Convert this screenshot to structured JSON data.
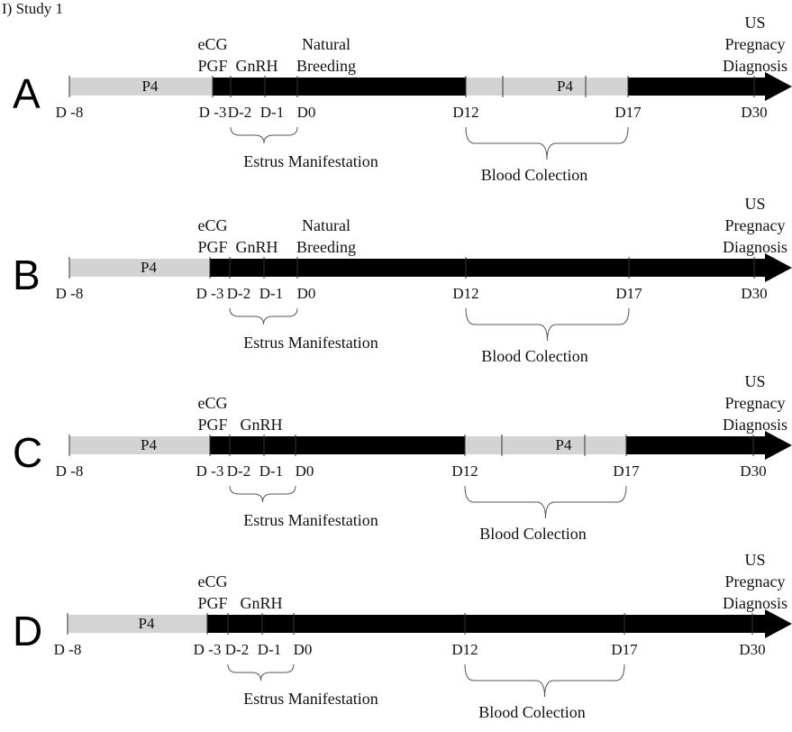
{
  "title": "I) Study 1",
  "panels": [
    {
      "letter": "A",
      "bars": [
        {
          "from": "D -8",
          "to": "D -3",
          "label": "P4",
          "color": "#d3d3d3"
        },
        {
          "from": "D12",
          "to": "D17",
          "label": "P4",
          "color": "#d3d3d3"
        }
      ],
      "days": [
        "D -8",
        "D -3",
        "D-2",
        "D-1",
        "D0",
        "D12",
        "D17",
        "D30"
      ],
      "top_labels": [
        {
          "lines": [
            "eCG",
            "PGF"
          ]
        },
        {
          "lines": [
            "GnRH"
          ]
        },
        {
          "lines": [
            "Natural",
            "Breeding"
          ]
        },
        {
          "lines": [
            "US",
            "Pregnacy",
            "Diagnosis"
          ]
        }
      ],
      "estrus_label": "Estrus Manifestation",
      "blood_label": "Blood Colection"
    },
    {
      "letter": "B",
      "bars": [
        {
          "from": "D -8",
          "to": "D -3",
          "label": "P4",
          "color": "#d3d3d3"
        }
      ],
      "days": [
        "D -8",
        "D -3",
        "D-2",
        "D-1",
        "D0",
        "D12",
        "D17",
        "D30"
      ],
      "top_labels": [
        {
          "lines": [
            "eCG",
            "PGF"
          ]
        },
        {
          "lines": [
            "GnRH"
          ]
        },
        {
          "lines": [
            "Natural",
            "Breeding"
          ]
        },
        {
          "lines": [
            "US",
            "Pregnacy",
            "Diagnosis"
          ]
        }
      ],
      "estrus_label": "Estrus Manifestation",
      "blood_label": "Blood Colection"
    },
    {
      "letter": "C",
      "bars": [
        {
          "from": "D -8",
          "to": "D -3",
          "label": "P4",
          "color": "#d3d3d3"
        },
        {
          "from": "D12",
          "to": "D17",
          "label": "P4",
          "color": "#d3d3d3"
        }
      ],
      "days": [
        "D -8",
        "D -3",
        "D-2",
        "D-1",
        "D0",
        "D12",
        "D17",
        "D30"
      ],
      "top_labels": [
        {
          "lines": [
            "eCG",
            "PGF"
          ]
        },
        {
          "lines": [
            "GnRH"
          ]
        },
        {
          "lines": [
            "US",
            "Pregnacy",
            "Diagnosis"
          ]
        }
      ],
      "estrus_label": "Estrus Manifestation",
      "blood_label": "Blood Colection"
    },
    {
      "letter": "D",
      "bars": [
        {
          "from": "D -8",
          "to": "D -3",
          "label": "P4",
          "color": "#d3d3d3"
        }
      ],
      "days": [
        "D -8",
        "D -3",
        "D-2",
        "D-1",
        "D0",
        "D12",
        "D17",
        "D30"
      ],
      "top_labels": [
        {
          "lines": [
            "eCG",
            "PGF"
          ]
        },
        {
          "lines": [
            "GnRH"
          ]
        },
        {
          "lines": [
            "US",
            "Pregnacy",
            "Diagnosis"
          ]
        }
      ],
      "estrus_label": "Estrus Manifestation",
      "blood_label": "Blood Colection"
    }
  ],
  "colors": {
    "timeline": "#000000",
    "treatment_bar": "#d3d3d3"
  }
}
